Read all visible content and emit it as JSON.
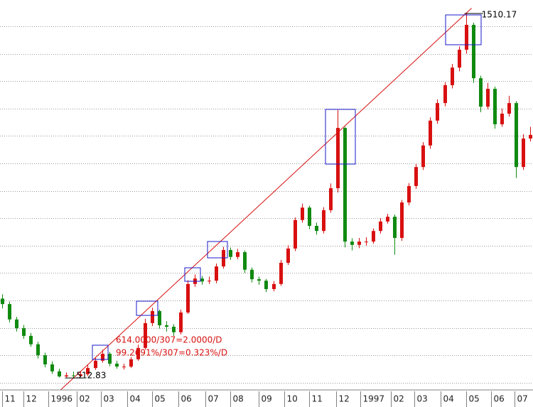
{
  "chart_data": {
    "type": "candlestick",
    "up_color": "#d81010",
    "down_color": "#108a10",
    "grid": true,
    "ylim": [
      482,
      1547
    ],
    "yticks": [
      500,
      575,
      650,
      725,
      800,
      875,
      950,
      1025,
      1100,
      1175,
      1250,
      1325,
      1400,
      1475
    ],
    "xlim": [
      -0.3,
      74.4
    ],
    "xticks": [
      {
        "value": 0,
        "label": "11"
      },
      {
        "value": 3,
        "label": "12"
      },
      {
        "value": 6.5,
        "label": "1996"
      },
      {
        "value": 10.5,
        "label": "02"
      },
      {
        "value": 13.8,
        "label": "03"
      },
      {
        "value": 17.5,
        "label": "04"
      },
      {
        "value": 21,
        "label": "05"
      },
      {
        "value": 24.7,
        "label": "06"
      },
      {
        "value": 28.5,
        "label": "07"
      },
      {
        "value": 32,
        "label": "08"
      },
      {
        "value": 36,
        "label": "09"
      },
      {
        "value": 39.5,
        "label": "10"
      },
      {
        "value": 43,
        "label": "11"
      },
      {
        "value": 46.8,
        "label": "12"
      },
      {
        "value": 50.2,
        "label": "1997"
      },
      {
        "value": 54.5,
        "label": "02"
      },
      {
        "value": 57.8,
        "label": "03"
      },
      {
        "value": 61.5,
        "label": "04"
      },
      {
        "value": 65,
        "label": "05"
      },
      {
        "value": 68.5,
        "label": "06"
      },
      {
        "value": 71.8,
        "label": "07"
      }
    ],
    "open": [
      730,
      715,
      673,
      649,
      628,
      605,
      575,
      550,
      531,
      517,
      520,
      518,
      523,
      540,
      560,
      579,
      552,
      544,
      544,
      564,
      595,
      663,
      696,
      657,
      653,
      638,
      692,
      770,
      785,
      777,
      779,
      818,
      863,
      844,
      857,
      809,
      783,
      779,
      756,
      770,
      828,
      867,
      945,
      979,
      929,
      915,
      972,
      1032,
      1197,
      886,
      877,
      886,
      886,
      915,
      941,
      954,
      896,
      993,
      1038,
      1090,
      1149,
      1217,
      1265,
      1314,
      1362,
      1411,
      1479,
      1333,
      1255,
      1304,
      1207,
      1236,
      1265,
      1090,
      1168
    ],
    "high": [
      742,
      722,
      680,
      658,
      636,
      612,
      582,
      558,
      538,
      528,
      530,
      531,
      548,
      568,
      590,
      584,
      560,
      552,
      570,
      604,
      675,
      705,
      700,
      668,
      660,
      700,
      780,
      796,
      792,
      790,
      826,
      872,
      870,
      866,
      862,
      815,
      790,
      784,
      778,
      836,
      876,
      952,
      990,
      984,
      938,
      980,
      1045,
      1246,
      1200,
      895,
      896,
      898,
      922,
      950,
      962,
      960,
      1000,
      1046,
      1098,
      1158,
      1226,
      1275,
      1322,
      1372,
      1420,
      1510.17,
      1485,
      1340,
      1320,
      1310,
      1250,
      1285,
      1270,
      1180,
      1200
    ],
    "low": [
      703,
      665,
      640,
      620,
      598,
      566,
      542,
      524,
      514,
      514,
      512.83,
      515,
      518,
      535,
      555,
      545,
      538,
      536,
      540,
      560,
      590,
      655,
      648,
      640,
      628,
      632,
      688,
      762,
      768,
      770,
      772,
      812,
      836,
      838,
      800,
      774,
      768,
      748,
      750,
      765,
      822,
      860,
      938,
      920,
      905,
      908,
      965,
      1020,
      870,
      862,
      868,
      875,
      880,
      908,
      935,
      850,
      888,
      985,
      1030,
      1082,
      1140,
      1208,
      1256,
      1305,
      1352,
      1400,
      1320,
      1240,
      1248,
      1195,
      1200,
      1228,
      1060,
      1082,
      1160
    ],
    "close": [
      715,
      673,
      649,
      628,
      605,
      575,
      550,
      531,
      517,
      520,
      518,
      523,
      540,
      560,
      579,
      552,
      544,
      544,
      564,
      595,
      663,
      696,
      657,
      653,
      638,
      692,
      770,
      785,
      777,
      779,
      818,
      863,
      844,
      857,
      809,
      783,
      779,
      756,
      770,
      828,
      867,
      945,
      979,
      929,
      915,
      972,
      1032,
      1197,
      886,
      877,
      886,
      886,
      915,
      941,
      954,
      896,
      993,
      1038,
      1090,
      1149,
      1217,
      1265,
      1314,
      1362,
      1411,
      1479,
      1333,
      1255,
      1304,
      1207,
      1236,
      1265,
      1090,
      1168,
      1178
    ],
    "annotations": [
      "614.0000/307=2.0000/D",
      "99.2691%/307=0.323%/D"
    ]
  }
}
